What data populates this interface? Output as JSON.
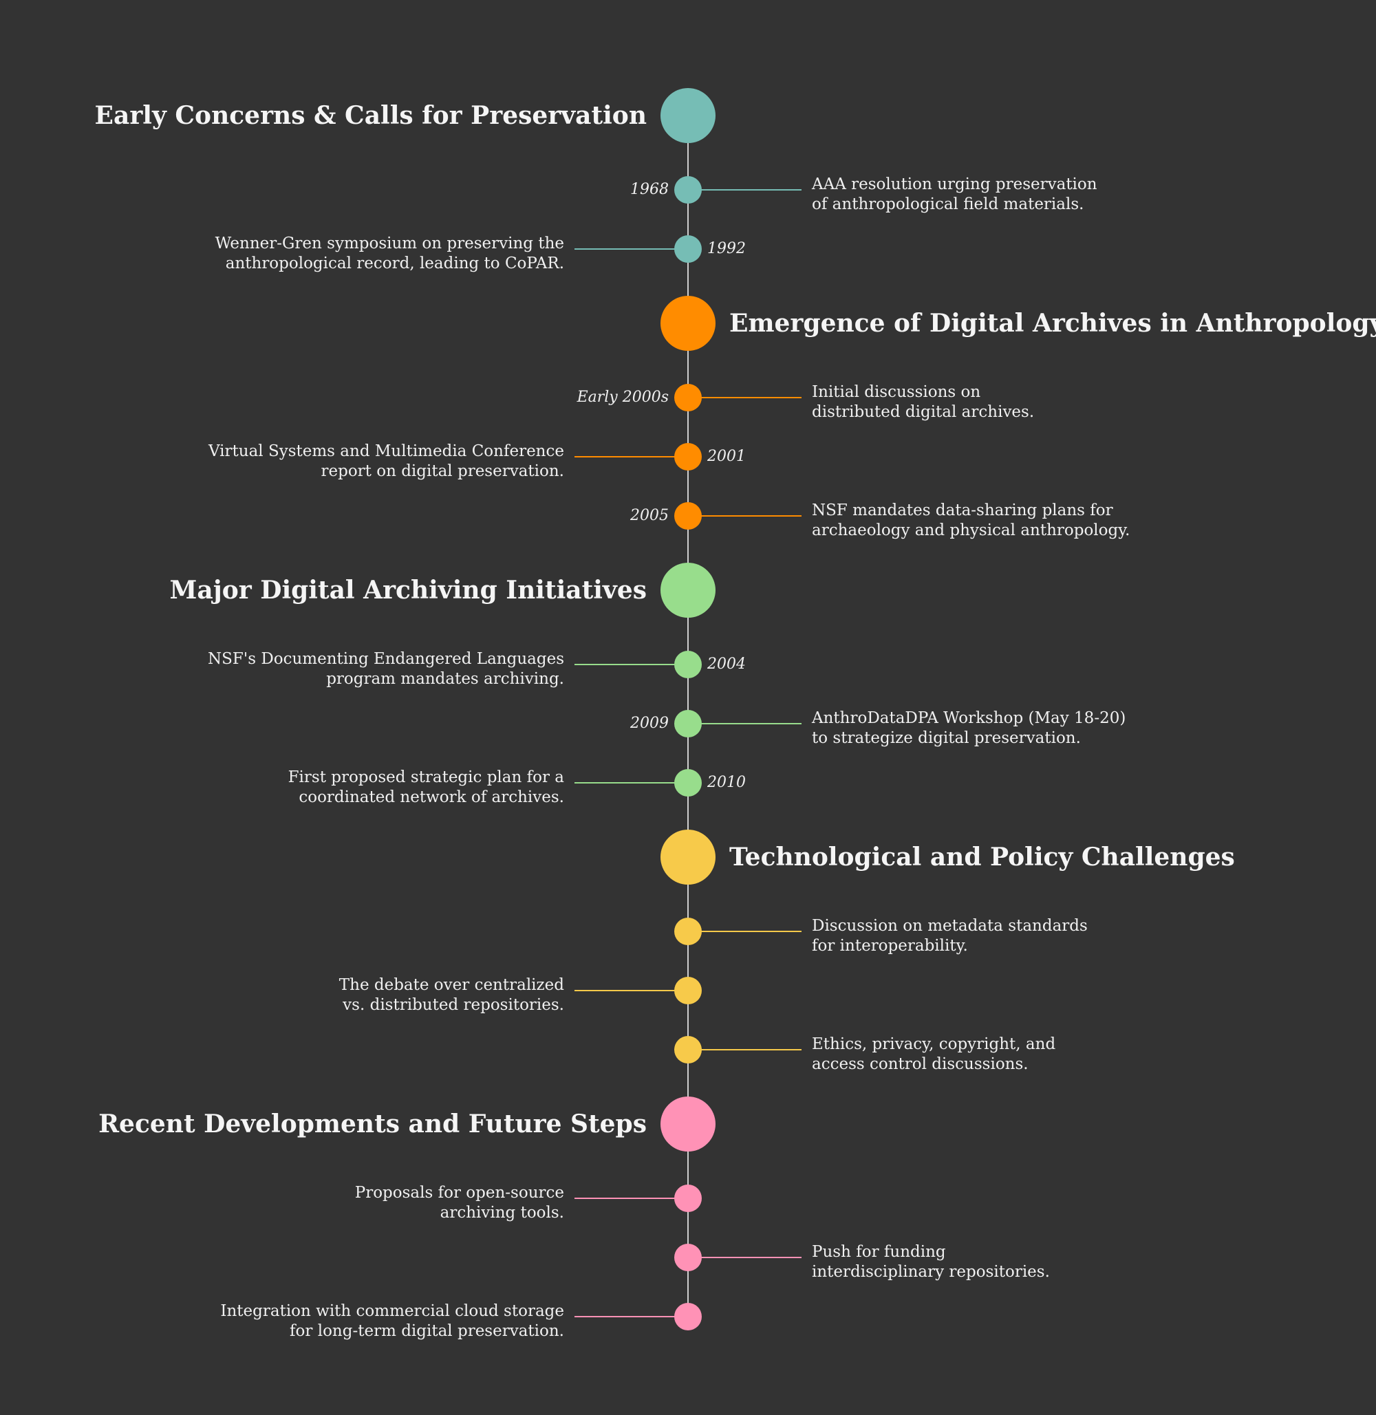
{
  "timeline": {
    "sections": [
      {
        "title": "Early Concerns & Calls for Preservation",
        "color": "#76bdb5",
        "side": "left",
        "events": [
          {
            "year": "1968",
            "text": "AAA resolution urging preservation\nof anthropological field materials.",
            "side": "right"
          },
          {
            "year": "1992",
            "text": "Wenner-Gren symposium on preserving the\nanthropological record, leading to CoPAR.",
            "side": "left"
          }
        ]
      },
      {
        "title": "Emergence of Digital Archives in Anthropology",
        "color": "#ff8c00",
        "side": "right",
        "events": [
          {
            "year": "Early 2000s",
            "text": "Initial discussions on\ndistributed digital archives.",
            "side": "right"
          },
          {
            "year": "2001",
            "text": "Virtual Systems and Multimedia Conference\nreport on digital preservation.",
            "side": "left"
          },
          {
            "year": "2005",
            "text": "NSF mandates data-sharing plans for\narchaeology and physical anthropology.",
            "side": "right"
          }
        ]
      },
      {
        "title": "Major Digital Archiving Initiatives",
        "color": "#98dd8c",
        "side": "left",
        "events": [
          {
            "year": "2004",
            "text": "NSF's Documenting Endangered Languages\nprogram mandates archiving.",
            "side": "left"
          },
          {
            "year": "2009",
            "text": "AnthroDataDPA Workshop (May 18-20)\nto strategize digital preservation.",
            "side": "right"
          },
          {
            "year": "2010",
            "text": "First proposed strategic plan for a\ncoordinated network of archives.",
            "side": "left"
          }
        ]
      },
      {
        "title": "Technological and Policy Challenges",
        "color": "#f7ca4a",
        "side": "right",
        "events": [
          {
            "year": "",
            "text": "Discussion on metadata standards\nfor interoperability.",
            "side": "right"
          },
          {
            "year": "",
            "text": "The debate over centralized\nvs. distributed repositories.",
            "side": "left"
          },
          {
            "year": "",
            "text": "Ethics, privacy, copyright, and\naccess control discussions.",
            "side": "right"
          }
        ]
      },
      {
        "title": "Recent Developments and Future Steps",
        "color": "#ff92b6",
        "side": "left",
        "events": [
          {
            "year": "",
            "text": "Proposals for open-source\narchiving tools.",
            "side": "left"
          },
          {
            "year": "",
            "text": "Push for funding\ninterdisciplinary repositories.",
            "side": "right"
          },
          {
            "year": "",
            "text": "Integration with commercial cloud storage\nfor long-term digital preservation.",
            "side": "left"
          }
        ]
      }
    ]
  }
}
